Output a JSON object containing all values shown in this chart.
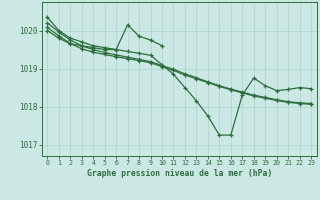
{
  "title": "Graphe pression niveau de la mer (hPa)",
  "bg_color": "#cce8e4",
  "grid_color": "#aad4cc",
  "line_color": "#2d6e3e",
  "xlim": [
    -0.5,
    23.5
  ],
  "ylim": [
    1016.7,
    1020.75
  ],
  "yticks": [
    1017,
    1018,
    1019,
    1020
  ],
  "xticks": [
    0,
    1,
    2,
    3,
    4,
    5,
    6,
    7,
    8,
    9,
    10,
    11,
    12,
    13,
    14,
    15,
    16,
    17,
    18,
    19,
    20,
    21,
    22,
    23
  ],
  "series": {
    "main": [
      1020.35,
      1020.0,
      1019.8,
      1019.7,
      1019.6,
      1019.55,
      1019.5,
      1019.45,
      1019.4,
      1019.35,
      1019.1,
      1018.85,
      1018.5,
      1018.15,
      1017.75,
      1017.25,
      1017.25,
      1018.3,
      1018.75,
      1018.55,
      1018.42,
      1018.45,
      1018.5,
      1018.47
    ],
    "spike": [
      1020.0,
      1019.8,
      1019.65,
      1019.6,
      1019.55,
      1019.5,
      1019.5,
      1020.15,
      1019.85,
      1019.75,
      1019.6
    ],
    "trend1": [
      1020.2,
      1019.96,
      1019.75,
      1019.6,
      1019.5,
      1019.42,
      1019.36,
      1019.3,
      1019.24,
      1019.18,
      1019.08,
      1018.98,
      1018.86,
      1018.76,
      1018.65,
      1018.55,
      1018.46,
      1018.38,
      1018.3,
      1018.24,
      1018.18,
      1018.13,
      1018.1,
      1018.08
    ],
    "trend2": [
      1020.08,
      1019.86,
      1019.66,
      1019.52,
      1019.43,
      1019.37,
      1019.31,
      1019.26,
      1019.21,
      1019.15,
      1019.05,
      1018.95,
      1018.83,
      1018.73,
      1018.63,
      1018.53,
      1018.44,
      1018.36,
      1018.28,
      1018.22,
      1018.16,
      1018.11,
      1018.08,
      1018.06
    ]
  }
}
